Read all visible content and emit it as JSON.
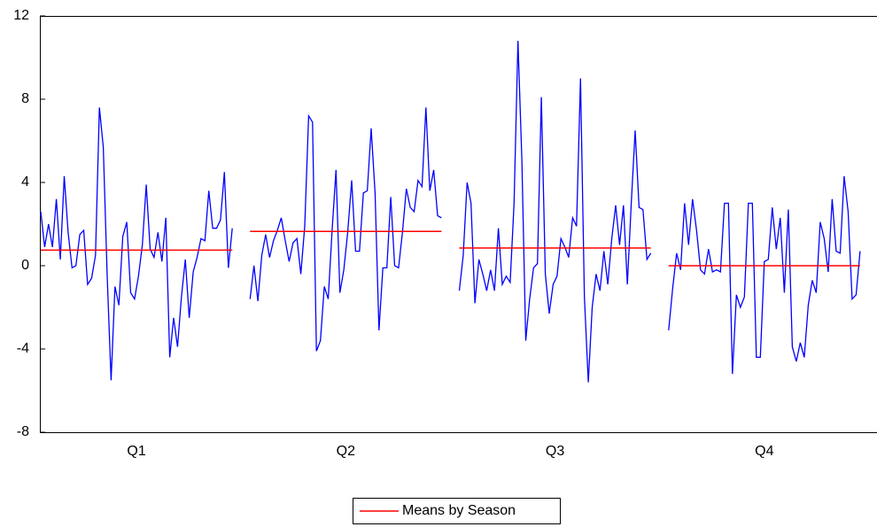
{
  "chart_data": {
    "type": "seasonal",
    "ylim": [
      -8,
      12
    ],
    "yticks": [
      -8,
      -4,
      0,
      4,
      8,
      12
    ],
    "line_color": "#0000ff",
    "mean_color": "#ff0000",
    "legend": "Means by Season",
    "legend_position": "bottom",
    "panels": [
      {
        "label": "Q1",
        "mean": 0.75,
        "values": [
          2.6,
          0.9,
          2.0,
          0.9,
          3.2,
          0.3,
          4.3,
          1.6,
          -0.1,
          0.0,
          1.5,
          1.7,
          -0.9,
          -0.6,
          0.5,
          7.6,
          5.7,
          -0.5,
          -5.5,
          -1.0,
          -1.9,
          1.4,
          2.1,
          -1.3,
          -1.6,
          -0.5,
          1.0,
          3.9,
          0.8,
          0.4,
          1.6,
          0.2,
          2.3,
          -4.4,
          -2.5,
          -3.9,
          -1.5,
          0.3,
          -2.5,
          -0.3,
          0.4,
          1.3,
          1.2,
          3.6,
          1.8,
          1.8,
          2.2,
          4.5,
          -0.1,
          1.8
        ]
      },
      {
        "label": "Q2",
        "mean": 1.65,
        "values": [
          -1.6,
          0.0,
          -1.7,
          0.5,
          1.5,
          0.4,
          1.2,
          1.7,
          2.3,
          1.2,
          0.2,
          1.1,
          1.3,
          -0.4,
          1.9,
          7.2,
          6.9,
          -4.1,
          -3.6,
          -1.0,
          -1.6,
          1.7,
          4.6,
          -1.3,
          -0.2,
          1.6,
          4.1,
          0.7,
          0.7,
          3.5,
          3.6,
          6.6,
          3.5,
          -3.1,
          -0.1,
          -0.1,
          3.3,
          0.0,
          -0.1,
          1.6,
          3.7,
          2.8,
          2.6,
          4.1,
          3.8,
          7.6,
          3.6,
          4.6,
          2.4,
          2.3
        ]
      },
      {
        "label": "Q3",
        "mean": 0.85,
        "values": [
          -1.2,
          0.5,
          4.0,
          3.0,
          -1.8,
          0.3,
          -0.4,
          -1.2,
          -0.2,
          -1.2,
          1.8,
          -0.9,
          -0.5,
          -0.8,
          3.0,
          10.8,
          5.1,
          -3.6,
          -1.6,
          -0.1,
          0.1,
          8.1,
          -0.4,
          -2.3,
          -0.9,
          -0.5,
          1.3,
          0.9,
          0.4,
          2.3,
          1.9,
          9.0,
          -1.5,
          -5.6,
          -2.0,
          -0.4,
          -1.2,
          0.7,
          -0.9,
          1.3,
          2.9,
          1.0,
          2.9,
          -0.9,
          3.0,
          6.5,
          2.8,
          2.7,
          0.3,
          0.6
        ]
      },
      {
        "label": "Q4",
        "mean": 0.0,
        "values": [
          -3.1,
          -1.1,
          0.6,
          -0.2,
          3.0,
          1.0,
          3.2,
          1.7,
          -0.2,
          -0.4,
          0.8,
          -0.3,
          -0.2,
          -0.3,
          3.0,
          3.0,
          -5.2,
          -1.4,
          -2.0,
          -1.5,
          3.0,
          3.0,
          -4.4,
          -4.4,
          0.2,
          0.3,
          2.8,
          0.8,
          2.3,
          -1.3,
          2.7,
          -3.9,
          -4.6,
          -3.7,
          -4.4,
          -1.9,
          -0.7,
          -1.3,
          2.1,
          1.3,
          -0.3,
          3.2,
          0.7,
          0.6,
          4.3,
          2.6,
          -1.6,
          -1.4,
          0.7
        ]
      }
    ]
  }
}
